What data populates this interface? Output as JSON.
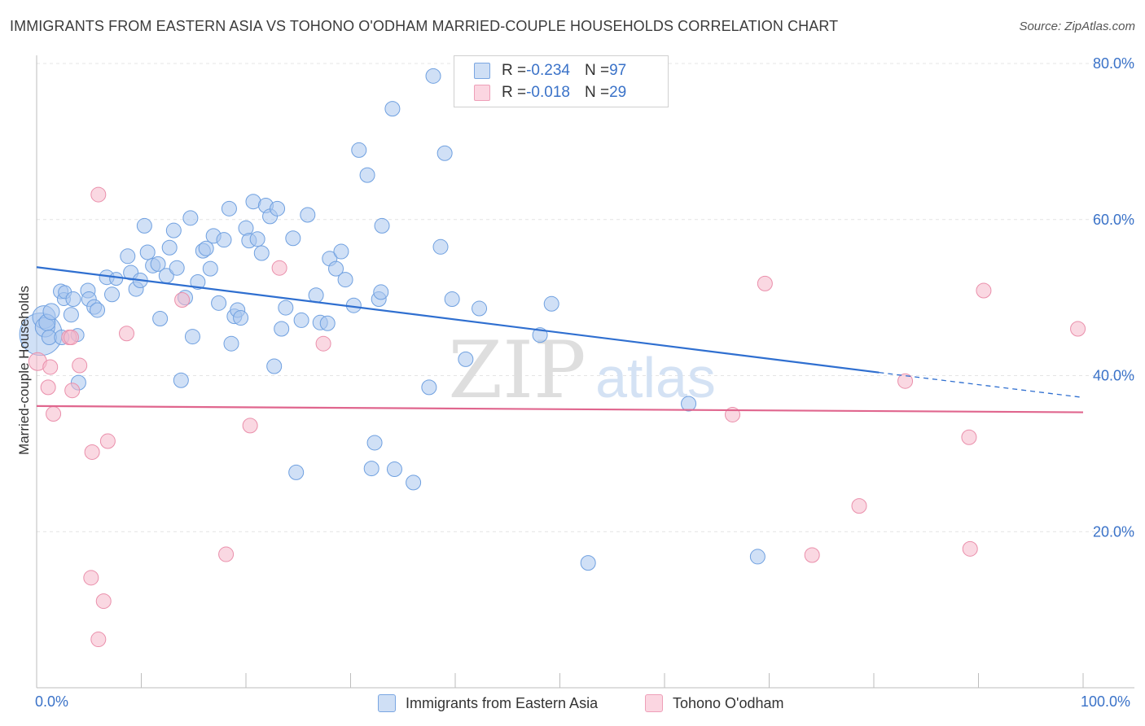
{
  "title": "IMMIGRANTS FROM EASTERN ASIA VS TOHONO O'ODHAM MARRIED-COUPLE HOUSEHOLDS CORRELATION CHART",
  "source": "Source: ZipAtlas.com",
  "watermark": {
    "zip": "ZIP",
    "atlas": "atlas"
  },
  "legend_top": {
    "rows": [
      {
        "r_label": "R = ",
        "r_value": "-0.234",
        "n_label": "N = ",
        "n_value": "97",
        "color": "#a9c6ee"
      },
      {
        "r_label": "R = ",
        "r_value": "-0.018",
        "n_label": "N = ",
        "n_value": "29",
        "color": "#f5b8cb"
      }
    ]
  },
  "legend_bottom": {
    "items": [
      {
        "label": "Immigrants from Eastern Asia",
        "color": "#a9c6ee"
      },
      {
        "label": "Tohono O'odham",
        "color": "#f5b8cb"
      }
    ]
  },
  "x_labels": {
    "min": "0.0%",
    "max": "100.0%"
  },
  "chart_data": {
    "type": "scatter",
    "title": "IMMIGRANTS FROM EASTERN ASIA VS TOHONO O'ODHAM MARRIED-COUPLE HOUSEHOLDS CORRELATION CHART",
    "xlabel": "",
    "ylabel": "Married-couple Households",
    "xlim": [
      0,
      100
    ],
    "ylim": [
      0,
      80
    ],
    "y_ticks": [
      {
        "value": 20,
        "label": "20.0%"
      },
      {
        "value": 40,
        "label": "40.0%"
      },
      {
        "value": 60,
        "label": "60.0%"
      },
      {
        "value": 80,
        "label": "80.0%"
      }
    ],
    "grid": true,
    "legend_position": "top-center",
    "series": [
      {
        "name": "Immigrants from Eastern Asia",
        "color": "#6fa0e0",
        "fill": "#a9c6ee",
        "trend": {
          "x": [
            0,
            80.5,
            100
          ],
          "y": [
            53.9,
            40.4,
            37.2
          ],
          "solid_until": 80.5,
          "color": "#2f6fd0"
        },
        "points": [
          [
            0.4,
            45.3,
            26
          ],
          [
            0.7,
            47.5,
            14
          ],
          [
            0.8,
            46.2,
            12
          ],
          [
            1.0,
            46.8,
            10
          ],
          [
            1.2,
            44.9,
            9
          ],
          [
            1.4,
            48.2,
            10
          ],
          [
            2.3,
            50.8,
            9
          ],
          [
            2.4,
            44.9,
            9
          ],
          [
            2.6,
            49.8,
            8
          ],
          [
            2.7,
            50.7,
            8
          ],
          [
            3.3,
            47.8,
            9
          ],
          [
            3.5,
            49.8,
            9
          ],
          [
            3.9,
            45.2,
            8
          ],
          [
            4.0,
            39.1,
            9
          ],
          [
            4.9,
            50.9,
            9
          ],
          [
            5.0,
            49.8,
            9
          ],
          [
            5.5,
            48.8,
            9
          ],
          [
            5.8,
            48.4,
            9
          ],
          [
            6.7,
            52.6,
            9
          ],
          [
            7.2,
            50.4,
            9
          ],
          [
            7.6,
            52.4,
            8
          ],
          [
            8.7,
            55.3,
            9
          ],
          [
            9.0,
            53.2,
            9
          ],
          [
            9.5,
            51.1,
            9
          ],
          [
            9.9,
            52.2,
            9
          ],
          [
            10.3,
            59.2,
            9
          ],
          [
            10.6,
            55.8,
            9
          ],
          [
            11.1,
            54.1,
            9
          ],
          [
            11.6,
            54.3,
            9
          ],
          [
            11.8,
            47.3,
            9
          ],
          [
            12.4,
            52.8,
            9
          ],
          [
            12.7,
            56.4,
            9
          ],
          [
            13.1,
            58.6,
            9
          ],
          [
            13.4,
            53.8,
            9
          ],
          [
            13.8,
            39.4,
            9
          ],
          [
            14.2,
            50.0,
            9
          ],
          [
            14.7,
            60.2,
            9
          ],
          [
            14.9,
            45.0,
            9
          ],
          [
            15.4,
            52.0,
            9
          ],
          [
            15.9,
            56.0,
            9
          ],
          [
            16.2,
            56.3,
            9
          ],
          [
            16.6,
            53.7,
            9
          ],
          [
            16.9,
            57.9,
            9
          ],
          [
            17.4,
            49.3,
            9
          ],
          [
            17.9,
            57.4,
            9
          ],
          [
            18.4,
            61.4,
            9
          ],
          [
            18.6,
            44.1,
            9
          ],
          [
            18.9,
            47.6,
            9
          ],
          [
            19.2,
            48.4,
            9
          ],
          [
            19.5,
            47.4,
            9
          ],
          [
            20.0,
            58.9,
            9
          ],
          [
            20.3,
            57.3,
            9
          ],
          [
            20.7,
            62.3,
            9
          ],
          [
            21.1,
            57.5,
            9
          ],
          [
            21.5,
            55.7,
            9
          ],
          [
            21.9,
            61.8,
            9
          ],
          [
            22.3,
            60.4,
            9
          ],
          [
            22.7,
            41.2,
            9
          ],
          [
            23.0,
            61.4,
            9
          ],
          [
            23.4,
            46.0,
            9
          ],
          [
            23.8,
            48.7,
            9
          ],
          [
            24.5,
            57.6,
            9
          ],
          [
            24.8,
            27.6,
            9
          ],
          [
            25.3,
            47.1,
            9
          ],
          [
            25.9,
            60.6,
            9
          ],
          [
            26.7,
            50.3,
            9
          ],
          [
            27.1,
            46.8,
            9
          ],
          [
            27.8,
            46.7,
            9
          ],
          [
            28.0,
            55.0,
            9
          ],
          [
            28.6,
            53.7,
            9
          ],
          [
            29.1,
            55.9,
            9
          ],
          [
            29.5,
            52.3,
            9
          ],
          [
            30.3,
            49.0,
            9
          ],
          [
            30.8,
            68.9,
            9
          ],
          [
            31.6,
            65.7,
            9
          ],
          [
            32.0,
            28.1,
            9
          ],
          [
            32.3,
            31.4,
            9
          ],
          [
            32.7,
            49.8,
            9
          ],
          [
            32.9,
            50.7,
            9
          ],
          [
            33.0,
            59.2,
            9
          ],
          [
            34.0,
            74.2,
            9
          ],
          [
            34.2,
            28.0,
            9
          ],
          [
            36.0,
            26.3,
            9
          ],
          [
            37.5,
            38.5,
            9
          ],
          [
            37.9,
            78.4,
            9
          ],
          [
            38.6,
            56.5,
            9
          ],
          [
            39.0,
            68.5,
            9
          ],
          [
            39.7,
            49.8,
            9
          ],
          [
            41.0,
            42.1,
            9
          ],
          [
            42.3,
            48.6,
            9
          ],
          [
            48.1,
            45.2,
            9
          ],
          [
            49.2,
            49.2,
            9
          ],
          [
            52.7,
            16.0,
            9
          ],
          [
            62.3,
            36.4,
            9
          ],
          [
            68.9,
            16.8,
            9
          ]
        ]
      },
      {
        "name": "Tohono O'odham",
        "color": "#ea8fab",
        "fill": "#f5b8cb",
        "trend": {
          "x": [
            0,
            100
          ],
          "y": [
            36.1,
            35.3
          ],
          "color": "#e0668e"
        },
        "points": [
          [
            0.1,
            41.8,
            11
          ],
          [
            1.1,
            38.5,
            9
          ],
          [
            1.3,
            41.1,
            9
          ],
          [
            1.6,
            35.1,
            9
          ],
          [
            3.1,
            44.9,
            9
          ],
          [
            3.3,
            44.9,
            9
          ],
          [
            3.4,
            38.1,
            9
          ],
          [
            4.1,
            41.3,
            9
          ],
          [
            5.2,
            14.1,
            9
          ],
          [
            5.3,
            30.2,
            9
          ],
          [
            5.9,
            6.2,
            9
          ],
          [
            5.9,
            63.2,
            9
          ],
          [
            6.4,
            11.1,
            9
          ],
          [
            6.8,
            31.6,
            9
          ],
          [
            8.6,
            45.4,
            9
          ],
          [
            13.9,
            49.7,
            9
          ],
          [
            18.1,
            17.1,
            9
          ],
          [
            20.4,
            33.6,
            9
          ],
          [
            23.2,
            53.8,
            9
          ],
          [
            27.4,
            44.1,
            9
          ],
          [
            66.5,
            35.0,
            9
          ],
          [
            69.6,
            51.8,
            9
          ],
          [
            74.1,
            17.0,
            9
          ],
          [
            78.6,
            23.3,
            9
          ],
          [
            83.0,
            39.3,
            9
          ],
          [
            89.1,
            32.1,
            9
          ],
          [
            89.2,
            17.8,
            9
          ],
          [
            90.5,
            50.9,
            9
          ],
          [
            99.5,
            46.0,
            9
          ]
        ]
      }
    ]
  }
}
